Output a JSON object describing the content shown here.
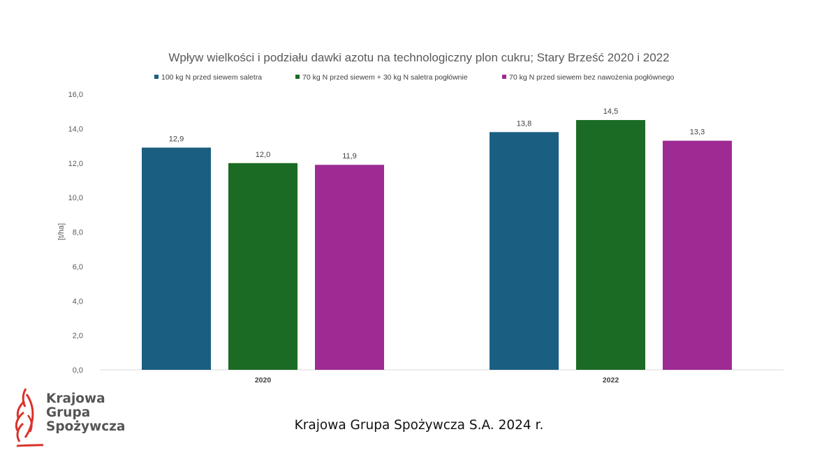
{
  "chart_data": {
    "type": "bar",
    "title": "Wpływ wielkości i podziału dawki azotu na technologiczny plon cukru; Stary Brześć 2020 i 2022",
    "ylabel": "[t/ha]",
    "xlabel": "",
    "ylim": [
      0,
      16
    ],
    "yticks": [
      "0,0",
      "2,0",
      "4,0",
      "6,0",
      "8,0",
      "10,0",
      "12,0",
      "14,0",
      "16,0"
    ],
    "categories": [
      "2020",
      "2022"
    ],
    "legend_position": "top",
    "grid": false,
    "series": [
      {
        "name": "100 kg N przed siewem saletra",
        "color": "#1A5E82",
        "values": [
          12.9,
          13.8
        ],
        "labels": [
          "12,9",
          "13,8"
        ]
      },
      {
        "name": "70 kg N przed siewem + 30 kg N saletra pogłównie",
        "color": "#1B6B24",
        "values": [
          12.0,
          14.5
        ],
        "labels": [
          "12,0",
          "14,5"
        ]
      },
      {
        "name": "70 kg N przed siewem bez nawożenia pogłównego",
        "color": "#9E2B93",
        "values": [
          11.9,
          13.3
        ],
        "labels": [
          "11,9",
          "13,3"
        ]
      }
    ]
  },
  "logo": {
    "lines": [
      "Krajowa",
      "Grupa",
      "Spożywcza"
    ],
    "accent": "#D9322A",
    "icon": "wheat-ear-icon"
  },
  "footer": {
    "text": "Krajowa Grupa Spożywcza S.A. 2024 r."
  }
}
